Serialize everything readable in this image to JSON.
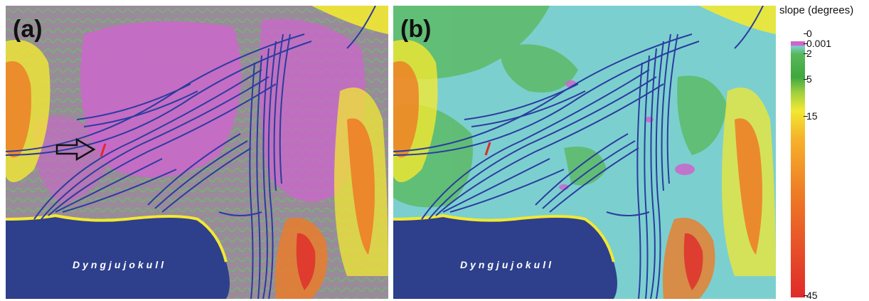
{
  "panels": [
    {
      "label": "(a)",
      "glacier_label": "Dyngjujokull"
    },
    {
      "label": "(b)",
      "glacier_label": "Dyngjujokull"
    }
  ],
  "legend": {
    "title": "slope (degrees)",
    "ticks": [
      "0",
      "0.001",
      "2",
      "5",
      "15",
      "45"
    ]
  },
  "colors": {
    "flat_zero_panel_a": "#cc66cc",
    "flat_zero_panel_b": "#7ccfcf",
    "low_slope": "#58b858",
    "moderate_slope": "#f2e832",
    "steep_slope": "#ee7a26",
    "very_steep_slope": "#e02a2a",
    "glacier": "#2e3f8c",
    "channels": "#2a3ca0"
  },
  "icons": {
    "arrow": "hollow-right-arrow-icon",
    "marker": "red-line-marker"
  }
}
